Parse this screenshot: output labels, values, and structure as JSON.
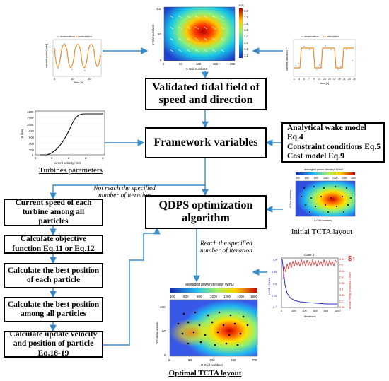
{
  "nodes": {
    "validated": "Validated tidal field of speed and direction",
    "framework": "Framework variables",
    "qdps": "QDPS optimization algorithm",
    "wake": "Analytical wake model Eq.4\nConstraint conditions Eq.5\nCost model Eq.9"
  },
  "left_steps": [
    "Current speed of each turbine among all particles",
    "Calculate objective function Eq.11 or Eq.12",
    "Calculate the best position of each particle",
    "Calculate the best position among all particles",
    "Calculate update velocity and position of particle Eq.18-19"
  ],
  "notes": {
    "not_reach": "Not reach the specified number of iteration",
    "reach": "Reach the specified number of iteration"
  },
  "captions": {
    "turbines": "Turbines parameters",
    "initial": "Initial TCTA layout",
    "optimal": "Optimal TCTA layout"
  },
  "figures": {
    "speed_plot": {
      "legend": [
        "observation",
        "simulation"
      ],
      "xlabel": "time [h]",
      "ylabel": "current speed [m/s]",
      "xticks": [
        "0",
        "10",
        "20"
      ],
      "series_colors": {
        "observation": "#7fa8d8",
        "simulation": "#f08a24"
      }
    },
    "direction_plot": {
      "legend": [
        "observation",
        "simulation"
      ],
      "xlabel": "time [h]",
      "ylabel": "current direction [°]",
      "xticks": [
        "1",
        "3",
        "5",
        "7",
        "9",
        "11",
        "13",
        "15",
        "17",
        "19",
        "21",
        "23",
        "25"
      ]
    },
    "tidal_map": {
      "xlabel": "X Grid numbers",
      "ylabel": "Y Grid numbers",
      "unit": "m/s",
      "colorbar_ticks": [
        "1.8",
        "1.7",
        "1.6",
        "1.5",
        "1.4",
        "1.3",
        "1.2",
        "1.1"
      ],
      "xticks": [
        "0",
        "50",
        "100",
        "150",
        "200"
      ],
      "yticks": [
        "0",
        "50",
        "100"
      ]
    },
    "power_curve": {
      "xlabel": "current velocity / m/s",
      "ylabel": "P / kW",
      "yticks": [
        "1400",
        "1200",
        "1000",
        "800",
        "600",
        "400",
        "200",
        "0"
      ],
      "xticks": [
        "0",
        "1",
        "2",
        "3",
        "4"
      ]
    },
    "initial_map": {
      "title": "averaged power density/ W/m2",
      "colorbar_ticks": [
        "400",
        "600",
        "800",
        "1000",
        "1200",
        "1400",
        "1600"
      ],
      "xlabel": "X Grid numbers",
      "ylabel": "Y Grid numbers"
    },
    "convergence": {
      "title": "Case 2",
      "xlabel": "Iterations",
      "ylabel_left": "LCOE / $/kWh",
      "ylabel_right": "annual energy production / GWh",
      "yticks_left": [
        "0.9",
        "0.85",
        "0.8",
        "0.75",
        "0.7"
      ],
      "yticks_right": [
        "2.55",
        "2.5",
        "2.45",
        "2.4",
        "2.35",
        "2.3",
        "2.25",
        "2.2",
        "2.15"
      ],
      "xticks": [
        "0",
        "200",
        "400",
        "600",
        "800",
        "1000"
      ],
      "colors": {
        "lcoe": "#2c2cc8",
        "aep": "#e02020"
      }
    },
    "optimal_map": {
      "title": "averaged power density/ W/m2",
      "colorbar_ticks": [
        "400",
        "600",
        "800",
        "1000",
        "1200",
        "1400",
        "1600"
      ],
      "xlabel": "X Grid numbers",
      "ylabel": "Y Grid numbers",
      "xticks": [
        "0",
        "50",
        "100",
        "150",
        "200"
      ],
      "yticks": [
        "0",
        "50",
        "100"
      ]
    }
  }
}
